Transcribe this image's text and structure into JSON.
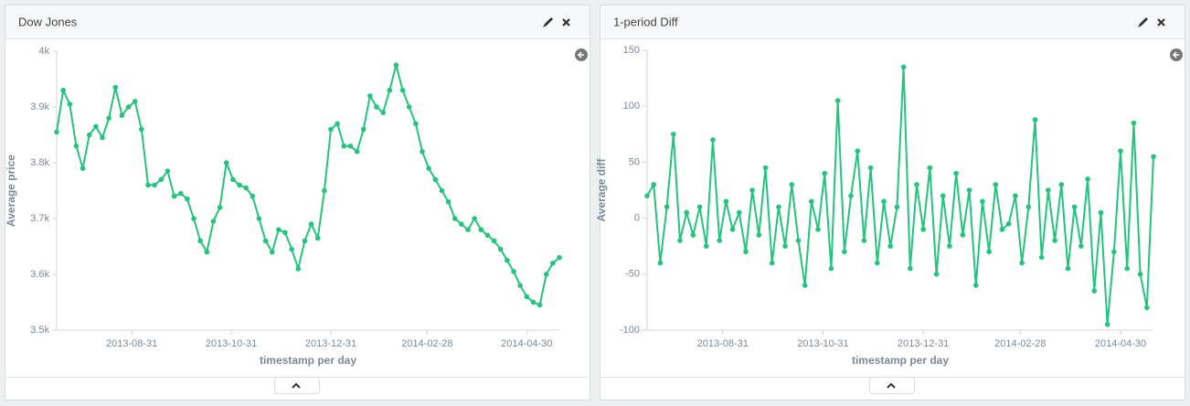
{
  "chart_data": [
    {
      "type": "line",
      "title": "Dow Jones",
      "x_label": "timestamp per day",
      "y_label": "Average price",
      "color": "#25c47d",
      "x": [
        "2013-07-16",
        "2013-07-20",
        "2013-07-24",
        "2013-07-28",
        "2013-08-01",
        "2013-08-05",
        "2013-08-09",
        "2013-08-13",
        "2013-08-17",
        "2013-08-21",
        "2013-08-25",
        "2013-08-29",
        "2013-09-02",
        "2013-09-06",
        "2013-09-10",
        "2013-09-14",
        "2013-09-18",
        "2013-09-22",
        "2013-09-26",
        "2013-09-30",
        "2013-10-04",
        "2013-10-08",
        "2013-10-12",
        "2013-10-16",
        "2013-10-20",
        "2013-10-24",
        "2013-10-28",
        "2013-11-01",
        "2013-11-05",
        "2013-11-09",
        "2013-11-13",
        "2013-11-17",
        "2013-11-21",
        "2013-11-25",
        "2013-11-29",
        "2013-12-03",
        "2013-12-07",
        "2013-12-11",
        "2013-12-15",
        "2013-12-19",
        "2013-12-23",
        "2013-12-27",
        "2013-12-31",
        "2014-01-04",
        "2014-01-08",
        "2014-01-12",
        "2014-01-16",
        "2014-01-20",
        "2014-01-24",
        "2014-01-28",
        "2014-02-01",
        "2014-02-05",
        "2014-02-09",
        "2014-02-13",
        "2014-02-17",
        "2014-02-21",
        "2014-02-25",
        "2014-03-01",
        "2014-03-05",
        "2014-03-09",
        "2014-03-13",
        "2014-03-17",
        "2014-03-21",
        "2014-03-25",
        "2014-03-29",
        "2014-04-02",
        "2014-04-06",
        "2014-04-10",
        "2014-04-14",
        "2014-04-18",
        "2014-04-22",
        "2014-04-26",
        "2014-04-30",
        "2014-05-04",
        "2014-05-08",
        "2014-05-12",
        "2014-05-16",
        "2014-05-20"
      ],
      "values": [
        3855,
        3930,
        3905,
        3830,
        3790,
        3850,
        3865,
        3845,
        3880,
        3935,
        3885,
        3900,
        3910,
        3860,
        3760,
        3760,
        3770,
        3785,
        3740,
        3745,
        3735,
        3700,
        3660,
        3640,
        3695,
        3720,
        3800,
        3770,
        3760,
        3755,
        3740,
        3700,
        3660,
        3640,
        3680,
        3675,
        3645,
        3610,
        3660,
        3690,
        3665,
        3750,
        3860,
        3870,
        3830,
        3830,
        3820,
        3860,
        3920,
        3900,
        3890,
        3930,
        3975,
        3930,
        3900,
        3870,
        3820,
        3790,
        3770,
        3750,
        3730,
        3700,
        3690,
        3680,
        3700,
        3680,
        3670,
        3660,
        3645,
        3625,
        3605,
        3580,
        3560,
        3550,
        3545,
        3600,
        3620,
        3630
      ],
      "xlim": [
        "2013-07-16",
        "2014-05-20"
      ],
      "xticks": [
        "2013-08-31",
        "2013-10-31",
        "2013-12-31",
        "2014-02-28",
        "2014-04-30"
      ],
      "ylim": [
        3500,
        4000
      ],
      "yticks": [
        {
          "value": 3500,
          "label": "3.5k"
        },
        {
          "value": 3600,
          "label": "3.6k"
        },
        {
          "value": 3700,
          "label": "3.7k"
        },
        {
          "value": 3800,
          "label": "3.8k"
        },
        {
          "value": 3900,
          "label": "3.9k"
        },
        {
          "value": 4000,
          "label": "4k"
        }
      ]
    },
    {
      "type": "line",
      "title": "1-period Diff",
      "x_label": "timestamp per day",
      "y_label": "Average diff",
      "color": "#25c47d",
      "x": [
        "2013-07-16",
        "2013-07-20",
        "2013-07-24",
        "2013-07-28",
        "2013-08-01",
        "2013-08-05",
        "2013-08-09",
        "2013-08-13",
        "2013-08-17",
        "2013-08-21",
        "2013-08-25",
        "2013-08-29",
        "2013-09-02",
        "2013-09-06",
        "2013-09-10",
        "2013-09-14",
        "2013-09-18",
        "2013-09-22",
        "2013-09-26",
        "2013-09-30",
        "2013-10-04",
        "2013-10-08",
        "2013-10-12",
        "2013-10-16",
        "2013-10-20",
        "2013-10-24",
        "2013-10-28",
        "2013-11-01",
        "2013-11-05",
        "2013-11-09",
        "2013-11-13",
        "2013-11-17",
        "2013-11-21",
        "2013-11-25",
        "2013-11-29",
        "2013-12-03",
        "2013-12-07",
        "2013-12-11",
        "2013-12-15",
        "2013-12-19",
        "2013-12-23",
        "2013-12-27",
        "2013-12-31",
        "2014-01-04",
        "2014-01-08",
        "2014-01-12",
        "2014-01-16",
        "2014-01-20",
        "2014-01-24",
        "2014-01-28",
        "2014-02-01",
        "2014-02-05",
        "2014-02-09",
        "2014-02-13",
        "2014-02-17",
        "2014-02-21",
        "2014-02-25",
        "2014-03-01",
        "2014-03-05",
        "2014-03-09",
        "2014-03-13",
        "2014-03-17",
        "2014-03-21",
        "2014-03-25",
        "2014-03-29",
        "2014-04-02",
        "2014-04-06",
        "2014-04-10",
        "2014-04-14",
        "2014-04-18",
        "2014-04-22",
        "2014-04-26",
        "2014-04-30",
        "2014-05-04",
        "2014-05-08",
        "2014-05-12",
        "2014-05-16",
        "2014-05-20"
      ],
      "values": [
        20,
        30,
        -40,
        10,
        75,
        -20,
        5,
        -15,
        10,
        -25,
        70,
        -20,
        15,
        -10,
        5,
        -30,
        25,
        -15,
        45,
        -40,
        10,
        -25,
        30,
        -20,
        -60,
        15,
        -10,
        40,
        -45,
        105,
        -30,
        20,
        60,
        -20,
        45,
        -40,
        15,
        -25,
        10,
        135,
        -45,
        30,
        -10,
        45,
        -50,
        20,
        -25,
        40,
        -15,
        25,
        -60,
        15,
        -30,
        30,
        -10,
        -5,
        20,
        -40,
        10,
        88,
        -35,
        25,
        -20,
        30,
        -45,
        10,
        -25,
        35,
        -65,
        5,
        -95,
        -30,
        60,
        -45,
        85,
        -50,
        -80,
        55
      ],
      "xlim": [
        "2013-07-16",
        "2014-05-20"
      ],
      "xticks": [
        "2013-08-31",
        "2013-10-31",
        "2013-12-31",
        "2014-02-28",
        "2014-04-30"
      ],
      "ylim": [
        -100,
        150
      ],
      "yticks": [
        -100,
        -50,
        0,
        50,
        100,
        150
      ]
    }
  ]
}
